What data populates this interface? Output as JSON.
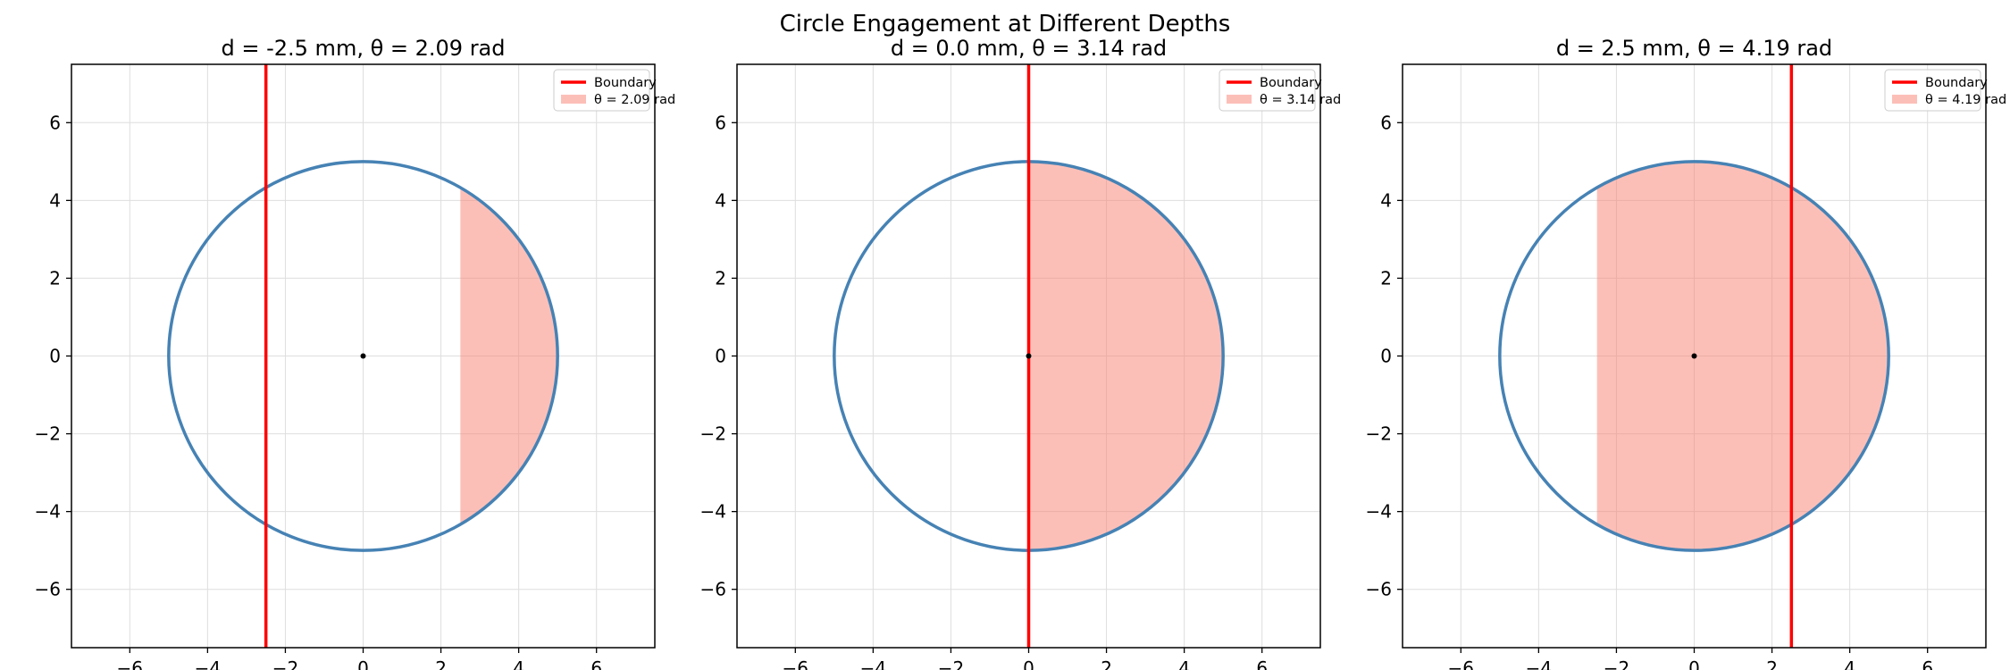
{
  "suptitle": "Circle Engagement at Different Depths",
  "chart_data": [
    {
      "type": "line",
      "title": "d = -2.5 mm, θ = 2.09 rad",
      "xlabel": "",
      "ylabel": "",
      "xlim": [
        -7.5,
        7.5
      ],
      "ylim": [
        -7.5,
        7.5
      ],
      "xticks": [
        -6,
        -4,
        -2,
        0,
        2,
        4,
        6
      ],
      "yticks": [
        -6,
        -4,
        -2,
        0,
        2,
        4,
        6
      ],
      "grid": true,
      "legend_position": "upper right",
      "circle": {
        "center": [
          0,
          0
        ],
        "radius": 5,
        "color": "#4682b4"
      },
      "boundary": {
        "label": "Boundary",
        "x": -2.5,
        "color": "#ff0000"
      },
      "engaged_region": {
        "label": "θ = 2.09 rad",
        "x_start": 2.5,
        "x_end": 5,
        "color": "#fa8072"
      }
    },
    {
      "type": "line",
      "title": "d = 0.0 mm, θ = 3.14 rad",
      "xlabel": "",
      "ylabel": "",
      "xlim": [
        -7.5,
        7.5
      ],
      "ylim": [
        -7.5,
        7.5
      ],
      "xticks": [
        -6,
        -4,
        -2,
        0,
        2,
        4,
        6
      ],
      "yticks": [
        -6,
        -4,
        -2,
        0,
        2,
        4,
        6
      ],
      "grid": true,
      "legend_position": "upper right",
      "circle": {
        "center": [
          0,
          0
        ],
        "radius": 5,
        "color": "#4682b4"
      },
      "boundary": {
        "label": "Boundary",
        "x": 0.0,
        "color": "#ff0000"
      },
      "engaged_region": {
        "label": "θ = 3.14 rad",
        "x_start": 0.0,
        "x_end": 5,
        "color": "#fa8072"
      }
    },
    {
      "type": "line",
      "title": "d = 2.5 mm, θ = 4.19 rad",
      "xlabel": "",
      "ylabel": "",
      "xlim": [
        -7.5,
        7.5
      ],
      "ylim": [
        -7.5,
        7.5
      ],
      "xticks": [
        -6,
        -4,
        -2,
        0,
        2,
        4,
        6
      ],
      "yticks": [
        -6,
        -4,
        -2,
        0,
        2,
        4,
        6
      ],
      "grid": true,
      "legend_position": "upper right",
      "circle": {
        "center": [
          0,
          0
        ],
        "radius": 5,
        "color": "#4682b4"
      },
      "boundary": {
        "label": "Boundary",
        "x": 2.5,
        "color": "#ff0000"
      },
      "engaged_region": {
        "label": "θ = 4.19 rad",
        "x_start": -2.5,
        "x_end": 5,
        "color": "#fa8072"
      }
    }
  ]
}
